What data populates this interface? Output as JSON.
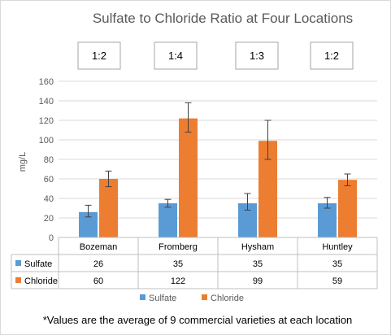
{
  "chart_data": {
    "type": "bar",
    "title": "Sulfate to Chloride Ratio at Four Locations",
    "ylabel": "mg/L",
    "ylim": [
      0,
      160
    ],
    "yticks": [
      0,
      20,
      40,
      60,
      80,
      100,
      120,
      140,
      160
    ],
    "grid": true,
    "categories": [
      "Bozeman",
      "Fromberg",
      "Hysham",
      "Huntley"
    ],
    "ratios": [
      "1:2",
      "1:4",
      "1:3",
      "1:2"
    ],
    "series": [
      {
        "name": "Sulfate",
        "color": "#5b9bd5",
        "values": [
          26,
          35,
          35,
          35
        ],
        "display": [
          "26",
          "35",
          "35",
          "35"
        ],
        "error_low": [
          21,
          31,
          28,
          30
        ],
        "error_high": [
          33,
          39,
          45,
          41
        ]
      },
      {
        "name": "Chloride",
        "color": "#ed7d31",
        "values": [
          60,
          122,
          99,
          59
        ],
        "display": [
          "60",
          "122",
          "99",
          "59"
        ],
        "error_low": [
          52,
          108,
          80,
          53
        ],
        "error_high": [
          68,
          138,
          120,
          65
        ]
      }
    ],
    "legend_position": "bottom",
    "data_table": true,
    "footnote": "*Values are the average of 9 commercial varieties at each location"
  }
}
